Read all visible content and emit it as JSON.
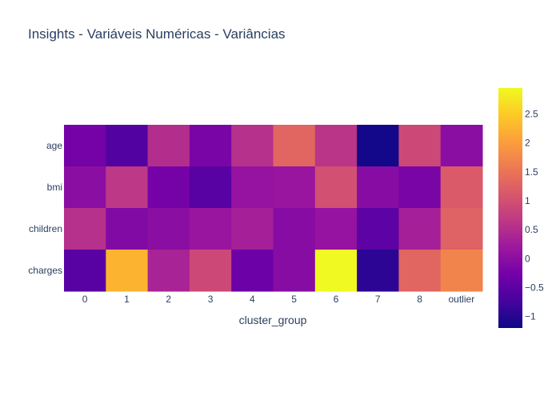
{
  "chart_data": {
    "type": "heatmap",
    "title": "Insights - Variáveis Numéricas - Variâncias",
    "xlabel": "cluster_group",
    "ylabel": "",
    "x": [
      "0",
      "1",
      "2",
      "3",
      "4",
      "5",
      "6",
      "7",
      "8",
      "outlier"
    ],
    "y": [
      "age",
      "bmi",
      "children",
      "charges"
    ],
    "z": [
      [
        -0.25,
        -0.6,
        0.5,
        -0.2,
        0.55,
        1.3,
        0.6,
        -1.15,
        0.9,
        0.0
      ],
      [
        0.0,
        0.65,
        -0.25,
        -0.55,
        0.1,
        0.15,
        1.0,
        -0.05,
        -0.2,
        1.15
      ],
      [
        0.55,
        -0.1,
        0.0,
        0.15,
        0.3,
        -0.05,
        0.1,
        -0.5,
        0.3,
        1.25
      ],
      [
        -0.55,
        2.25,
        0.35,
        0.9,
        -0.35,
        -0.05,
        2.95,
        -0.95,
        1.3,
        1.7
      ]
    ],
    "zrange": [
      -1.2,
      2.95
    ],
    "colorscale_name": "Plasma",
    "colorbar": {
      "tickvals": [
        -1,
        -0.5,
        0,
        0.5,
        1,
        1.5,
        2,
        2.5
      ],
      "ticktext": [
        "−1",
        "−0.5",
        "0",
        "0.5",
        "1",
        "1.5",
        "2",
        "2.5"
      ]
    },
    "colorscale": [
      [
        0.0,
        "#0d0887"
      ],
      [
        0.111,
        "#46039f"
      ],
      [
        0.222,
        "#7201a8"
      ],
      [
        0.333,
        "#9c179e"
      ],
      [
        0.444,
        "#bd3786"
      ],
      [
        0.556,
        "#d8576b"
      ],
      [
        0.667,
        "#ed7953"
      ],
      [
        0.778,
        "#fb9f3a"
      ],
      [
        0.889,
        "#fdca26"
      ],
      [
        1.0,
        "#f0f921"
      ]
    ]
  }
}
